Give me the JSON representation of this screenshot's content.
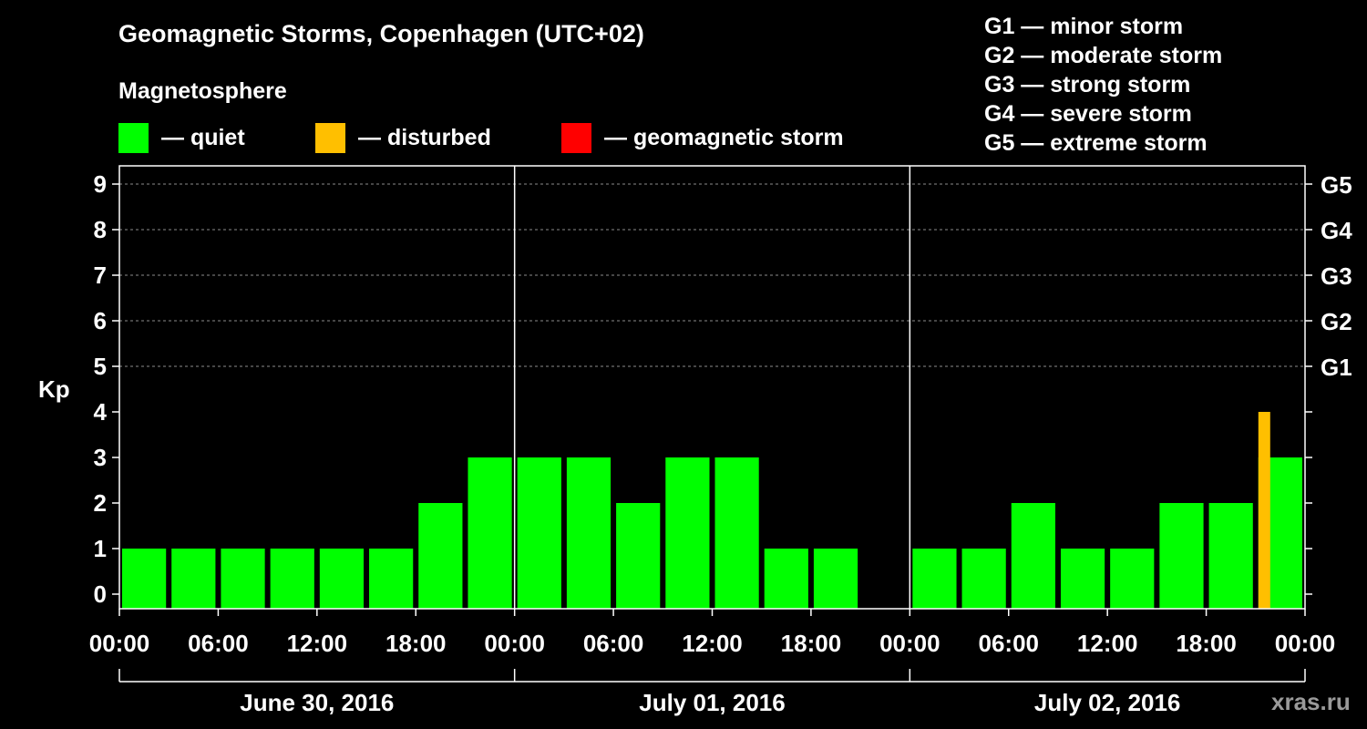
{
  "title": "Geomagnetic Storms, Copenhagen (UTC+02)",
  "subtitle": "Magnetosphere",
  "legend": [
    {
      "label": "— quiet",
      "color": "#00ff00"
    },
    {
      "label": "— disturbed",
      "color": "#ffbf00"
    },
    {
      "label": "— geomagnetic storm",
      "color": "#ff0000"
    }
  ],
  "storm_scale": [
    "G1 — minor storm",
    "G2 — moderate storm",
    "G3 — strong storm",
    "G4 — severe storm",
    "G5 — extreme storm"
  ],
  "watermark": "xras.ru",
  "chart_data": {
    "type": "bar",
    "title": "Geomagnetic Storms, Copenhagen (UTC+02)",
    "ylabel": "Kp",
    "ylim": [
      0,
      9
    ],
    "yticks": [
      "0",
      "1",
      "2",
      "3",
      "4",
      "5",
      "6",
      "7",
      "8",
      "9"
    ],
    "right_ticks": [
      {
        "value": 5,
        "label": "G1"
      },
      {
        "value": 6,
        "label": "G2"
      },
      {
        "value": 7,
        "label": "G3"
      },
      {
        "value": 8,
        "label": "G4"
      },
      {
        "value": 9,
        "label": "G5"
      }
    ],
    "xticks": [
      "00:00",
      "06:00",
      "12:00",
      "18:00",
      "00:00",
      "06:00",
      "12:00",
      "18:00",
      "00:00",
      "06:00",
      "12:00",
      "18:00",
      "00:00"
    ],
    "days": [
      "June 30, 2016",
      "July 01, 2016",
      "July 02, 2016"
    ],
    "interval_hours": 3,
    "values": [
      1,
      1,
      1,
      1,
      1,
      1,
      2,
      3,
      3,
      3,
      2,
      3,
      3,
      1,
      1,
      0,
      1,
      1,
      2,
      1,
      1,
      2,
      2,
      3
    ],
    "partial_bar": {
      "start_hour": 69,
      "value": 4,
      "status": "disturbed"
    },
    "colors": {
      "quiet": "#00ff00",
      "disturbed": "#ffbf00",
      "storm": "#ff0000"
    }
  }
}
